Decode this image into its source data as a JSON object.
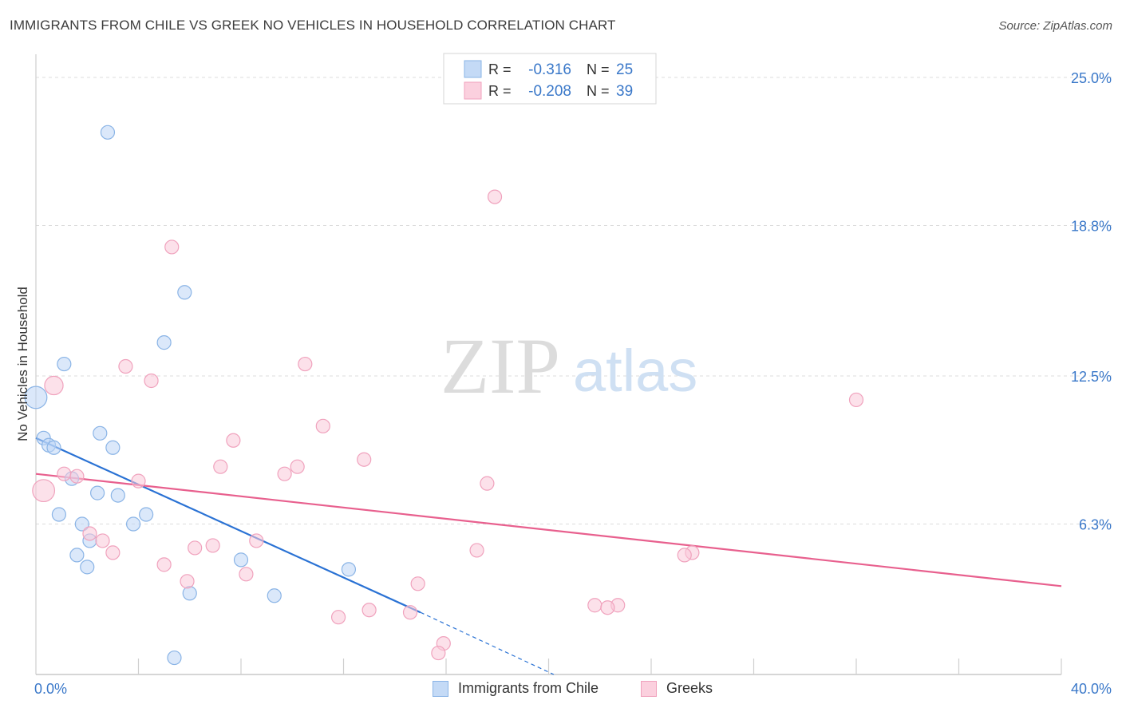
{
  "title": "IMMIGRANTS FROM CHILE VS GREEK NO VEHICLES IN HOUSEHOLD CORRELATION CHART",
  "source": "Source: ZipAtlas.com",
  "watermark": {
    "zip": "ZIP",
    "atlas": "atlas"
  },
  "colors": {
    "blue": "#a8c8f0",
    "blue_line": "#2a72d4",
    "pink": "#f5b3c8",
    "pink_line": "#e8608e",
    "value_text": "#3a78c9"
  },
  "legend_top": [
    {
      "r_label": "R =",
      "r_value": "-0.316",
      "n_label": "N =",
      "n_value": "25"
    },
    {
      "r_label": "R =",
      "r_value": "-0.208",
      "n_label": "N =",
      "n_value": "39"
    }
  ],
  "chart_data": {
    "type": "scatter",
    "xlabel": "",
    "ylabel": "No Vehicles in Household",
    "xlim": [
      0,
      40
    ],
    "ylim": [
      0,
      25.0
    ],
    "x_tick_labels": [
      "0.0%",
      "40.0%"
    ],
    "y_tick_labels": [
      "25.0%",
      "18.8%",
      "12.5%",
      "6.3%"
    ],
    "y_ticks": [
      25.0,
      18.8,
      12.5,
      6.3
    ],
    "grid": true,
    "legend_position": "top-center",
    "series": [
      {
        "name": "Immigrants from Chile",
        "color": "blue",
        "points": [
          {
            "x": 2.8,
            "y": 22.7,
            "s": 1
          },
          {
            "x": 5.8,
            "y": 16.0,
            "s": 1
          },
          {
            "x": 5.0,
            "y": 13.9,
            "s": 1
          },
          {
            "x": 1.1,
            "y": 13.0,
            "s": 1
          },
          {
            "x": 0.0,
            "y": 11.6,
            "s": 2
          },
          {
            "x": 2.5,
            "y": 10.1,
            "s": 1
          },
          {
            "x": 0.3,
            "y": 9.9,
            "s": 1
          },
          {
            "x": 0.5,
            "y": 9.6,
            "s": 1
          },
          {
            "x": 0.7,
            "y": 9.5,
            "s": 1
          },
          {
            "x": 3.0,
            "y": 9.5,
            "s": 1
          },
          {
            "x": 1.4,
            "y": 8.2,
            "s": 1
          },
          {
            "x": 2.4,
            "y": 7.6,
            "s": 1
          },
          {
            "x": 3.2,
            "y": 7.5,
            "s": 1
          },
          {
            "x": 0.9,
            "y": 6.7,
            "s": 1
          },
          {
            "x": 4.3,
            "y": 6.7,
            "s": 1
          },
          {
            "x": 1.8,
            "y": 6.3,
            "s": 1
          },
          {
            "x": 3.8,
            "y": 6.3,
            "s": 1
          },
          {
            "x": 2.1,
            "y": 5.6,
            "s": 1
          },
          {
            "x": 1.6,
            "y": 5.0,
            "s": 1
          },
          {
            "x": 8.0,
            "y": 4.8,
            "s": 1
          },
          {
            "x": 2.0,
            "y": 4.5,
            "s": 1
          },
          {
            "x": 12.2,
            "y": 4.4,
            "s": 1
          },
          {
            "x": 6.0,
            "y": 3.4,
            "s": 1
          },
          {
            "x": 9.3,
            "y": 3.3,
            "s": 1
          },
          {
            "x": 5.4,
            "y": 0.7,
            "s": 1
          }
        ],
        "trend": {
          "x0": 0,
          "y0": 9.9,
          "x1": 15.0,
          "y1": 2.6,
          "dash_x1": 20.2,
          "dash_y1": 0
        }
      },
      {
        "name": "Greeks",
        "color": "pink",
        "points": [
          {
            "x": 17.9,
            "y": 20.0,
            "s": 1
          },
          {
            "x": 5.3,
            "y": 17.9,
            "s": 1
          },
          {
            "x": 3.5,
            "y": 12.9,
            "s": 1
          },
          {
            "x": 10.5,
            "y": 13.0,
            "s": 1
          },
          {
            "x": 0.7,
            "y": 12.1,
            "s": 1.4
          },
          {
            "x": 4.5,
            "y": 12.3,
            "s": 1
          },
          {
            "x": 32.0,
            "y": 11.5,
            "s": 1
          },
          {
            "x": 11.2,
            "y": 10.4,
            "s": 1
          },
          {
            "x": 7.7,
            "y": 9.8,
            "s": 1
          },
          {
            "x": 12.8,
            "y": 9.0,
            "s": 1
          },
          {
            "x": 7.2,
            "y": 8.7,
            "s": 1
          },
          {
            "x": 10.2,
            "y": 8.7,
            "s": 1
          },
          {
            "x": 9.7,
            "y": 8.4,
            "s": 1
          },
          {
            "x": 1.1,
            "y": 8.4,
            "s": 1
          },
          {
            "x": 1.6,
            "y": 8.3,
            "s": 1
          },
          {
            "x": 4.0,
            "y": 8.1,
            "s": 1
          },
          {
            "x": 17.6,
            "y": 8.0,
            "s": 1
          },
          {
            "x": 0.3,
            "y": 7.7,
            "s": 2
          },
          {
            "x": 2.1,
            "y": 5.9,
            "s": 1
          },
          {
            "x": 2.6,
            "y": 5.6,
            "s": 1
          },
          {
            "x": 8.6,
            "y": 5.6,
            "s": 1
          },
          {
            "x": 6.9,
            "y": 5.4,
            "s": 1
          },
          {
            "x": 6.2,
            "y": 5.3,
            "s": 1
          },
          {
            "x": 3.0,
            "y": 5.1,
            "s": 1
          },
          {
            "x": 17.2,
            "y": 5.2,
            "s": 1
          },
          {
            "x": 25.6,
            "y": 5.1,
            "s": 1
          },
          {
            "x": 25.3,
            "y": 5.0,
            "s": 1
          },
          {
            "x": 5.0,
            "y": 4.6,
            "s": 1
          },
          {
            "x": 8.2,
            "y": 4.2,
            "s": 1
          },
          {
            "x": 5.9,
            "y": 3.9,
            "s": 1
          },
          {
            "x": 14.9,
            "y": 3.8,
            "s": 1
          },
          {
            "x": 21.8,
            "y": 2.9,
            "s": 1
          },
          {
            "x": 22.7,
            "y": 2.9,
            "s": 1
          },
          {
            "x": 22.3,
            "y": 2.8,
            "s": 1
          },
          {
            "x": 13.0,
            "y": 2.7,
            "s": 1
          },
          {
            "x": 14.6,
            "y": 2.6,
            "s": 1
          },
          {
            "x": 11.8,
            "y": 2.4,
            "s": 1
          },
          {
            "x": 15.9,
            "y": 1.3,
            "s": 1
          },
          {
            "x": 15.7,
            "y": 0.9,
            "s": 1
          }
        ],
        "trend": {
          "x0": 0,
          "y0": 8.4,
          "x1": 40,
          "y1": 3.7
        }
      }
    ]
  }
}
